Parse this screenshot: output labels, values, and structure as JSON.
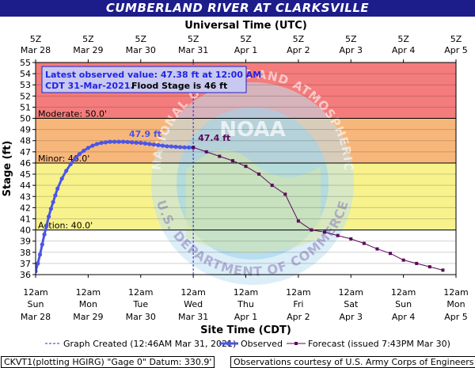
{
  "header": {
    "title": "CUMBERLAND RIVER AT CLARKSVILLE"
  },
  "chart_data": {
    "type": "line",
    "top_axis_title": "Universal Time (UTC)",
    "xlabel": "Site Time (CDT)",
    "ylabel": "Stage (ft)",
    "ylim": [
      36,
      55
    ],
    "y_ticks": [
      36,
      37,
      38,
      39,
      40,
      41,
      42,
      43,
      44,
      45,
      46,
      47,
      48,
      49,
      50,
      51,
      52,
      53,
      54,
      55
    ],
    "x_range_hours": [
      0,
      192
    ],
    "bottom_ticks": [
      {
        "h": 0,
        "time": "12am",
        "day": "Sun",
        "date": "Mar 28"
      },
      {
        "h": 24,
        "time": "12am",
        "day": "Mon",
        "date": "Mar 29"
      },
      {
        "h": 48,
        "time": "12am",
        "day": "Tue",
        "date": "Mar 30"
      },
      {
        "h": 72,
        "time": "12am",
        "day": "Wed",
        "date": "Mar 31"
      },
      {
        "h": 96,
        "time": "12am",
        "day": "Thu",
        "date": "Apr 1"
      },
      {
        "h": 120,
        "time": "12am",
        "day": "Fri",
        "date": "Apr 2"
      },
      {
        "h": 144,
        "time": "12am",
        "day": "Sat",
        "date": "Apr 3"
      },
      {
        "h": 168,
        "time": "12am",
        "day": "Sun",
        "date": "Apr 4"
      },
      {
        "h": 192,
        "time": "12am",
        "day": "Mon",
        "date": "Apr 5"
      }
    ],
    "top_ticks": [
      {
        "h": 0,
        "label": "5Z",
        "date": "Mar 28"
      },
      {
        "h": 24,
        "label": "5Z",
        "date": "Mar 29"
      },
      {
        "h": 48,
        "label": "5Z",
        "date": "Mar 30"
      },
      {
        "h": 72,
        "label": "5Z",
        "date": "Mar 31"
      },
      {
        "h": 96,
        "label": "5Z",
        "date": "Apr  1"
      },
      {
        "h": 120,
        "label": "5Z",
        "date": "Apr  2"
      },
      {
        "h": 144,
        "label": "5Z",
        "date": "Apr  3"
      },
      {
        "h": 168,
        "label": "5Z",
        "date": "Apr  4"
      },
      {
        "h": 192,
        "label": "5Z",
        "date": "Apr  5"
      }
    ],
    "bands": [
      {
        "from": 50,
        "to": 55,
        "color": "#f47c7c"
      },
      {
        "from": 46,
        "to": 50,
        "color": "#f7b77a"
      },
      {
        "from": 40,
        "to": 46,
        "color": "#f7f28c"
      },
      {
        "from": 36,
        "to": 40,
        "color": "#ffffff"
      }
    ],
    "thresholds": [
      {
        "value": 50,
        "label": "Moderate: 50.0'"
      },
      {
        "value": 46,
        "label": "Minor: 46.0'"
      },
      {
        "value": 40,
        "label": "Action: 40.0'"
      }
    ],
    "observed": {
      "name": "Observed",
      "color": "#4b55e6",
      "x": [
        0,
        1,
        2,
        3,
        4,
        5,
        6,
        7,
        8,
        9,
        10,
        12,
        14,
        16,
        18,
        20,
        22,
        24,
        26,
        28,
        30,
        32,
        34,
        36,
        38,
        40,
        42,
        44,
        46,
        48,
        50,
        52,
        54,
        56,
        58,
        60,
        62,
        64,
        66,
        68,
        70,
        72
      ],
      "y": [
        36.3,
        37.0,
        37.8,
        38.7,
        39.6,
        40.4,
        41.2,
        41.9,
        42.5,
        43.1,
        43.7,
        44.6,
        45.3,
        45.9,
        46.4,
        46.8,
        47.1,
        47.35,
        47.55,
        47.7,
        47.8,
        47.85,
        47.9,
        47.9,
        47.9,
        47.9,
        47.88,
        47.85,
        47.82,
        47.8,
        47.75,
        47.7,
        47.65,
        47.6,
        47.55,
        47.5,
        47.48,
        47.45,
        47.42,
        47.4,
        47.39,
        47.38
      ]
    },
    "forecast": {
      "name": "Forecast (issued 7:43PM Mar 30)",
      "color": "#5a0a5a",
      "x": [
        72,
        78,
        84,
        90,
        96,
        102,
        108,
        114,
        120,
        126,
        132,
        138,
        144,
        150,
        156,
        162,
        168,
        174,
        180,
        186
      ],
      "y": [
        47.4,
        47.0,
        46.6,
        46.2,
        45.7,
        45.0,
        44.0,
        43.2,
        40.8,
        40.0,
        39.8,
        39.5,
        39.2,
        38.8,
        38.3,
        37.9,
        37.3,
        37.0,
        36.7,
        36.4
      ]
    },
    "annotations": [
      {
        "label": "47.9 ft",
        "x": 47,
        "y": 47.9,
        "color": "#4b55e6"
      },
      {
        "label": "47.4 ft",
        "x": 72,
        "y": 47.4,
        "color": "#5a0a5a"
      }
    ],
    "created_marker_h": 72,
    "info_box": {
      "line1": "Latest observed value: 47.38 ft at 12:00 AM",
      "line2a": "CDT 31-Mar-2021.",
      "line2b": "Flood Stage is 46 ft"
    },
    "legend": {
      "created": "Graph Created (12:46AM Mar 31, 2021)",
      "observed": "Observed",
      "forecast": "Forecast (issued 7:43PM Mar 30)"
    }
  },
  "footer": {
    "left": "CKVT1(plotting HGIRG) \"Gage 0\" Datum:  330.9'",
    "right": "Observations courtesy of U.S. Army Corps of Engineers"
  },
  "watermark": {
    "ring_top": "NATIONAL OCEANIC AND ATMOSPHERIC ADMINISTRATION",
    "ring_bottom": "U.S. DEPARTMENT OF COMMERCE",
    "center": "NOAA"
  },
  "colors": {
    "title_bg": "#1c1c8a",
    "info_text": "#2323e6",
    "info_bg": "#c8c8f0"
  }
}
